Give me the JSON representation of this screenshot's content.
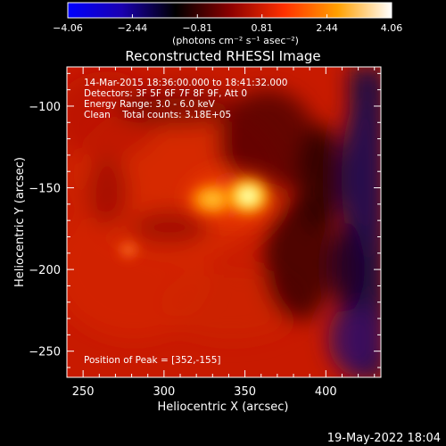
{
  "colorbar": {
    "ticks": [
      "-4.06",
      "-2.44",
      "-0.81",
      "0.81",
      "2.44",
      "4.06"
    ],
    "label": "(photons cm⁻² s⁻¹ asec⁻²)",
    "range": [
      -4.06,
      4.06
    ],
    "stops": [
      "#0000ff",
      "#1a00b0",
      "#000000",
      "#8a0000",
      "#ff3000",
      "#ffa000",
      "#ffffff"
    ]
  },
  "chart_data": {
    "type": "heatmap",
    "title": "Reconstructed RHESSI Image",
    "xlabel": "Heliocentric X (arcsec)",
    "ylabel": "Heliocentric Y (arcsec)",
    "xlim": [
      240,
      434
    ],
    "ylim": [
      -266,
      -76
    ],
    "xticks": [
      250,
      300,
      350,
      400
    ],
    "yticks": [
      -100,
      -150,
      -200,
      -250
    ],
    "annotations": [
      "14-Mar-2015 18:36:00.000 to 18:41:32.000",
      "Detectors: 3F 5F 6F 7F 8F 9F, Att 0",
      "Energy Range: 3.0 - 6.0 keV",
      "Clean    Total counts: 3.18E+05"
    ],
    "peak_label": "Position of Peak = [352,-155]",
    "peak": [
      352,
      -155
    ],
    "sources": [
      {
        "x": 352,
        "y": -155,
        "intensity": 4.06
      },
      {
        "x": 330,
        "y": -157,
        "intensity": 2.4
      },
      {
        "x": 278,
        "y": -188,
        "intensity": 1.6
      }
    ]
  },
  "footer": {
    "timestamp": "19-May-2022 18:04"
  }
}
